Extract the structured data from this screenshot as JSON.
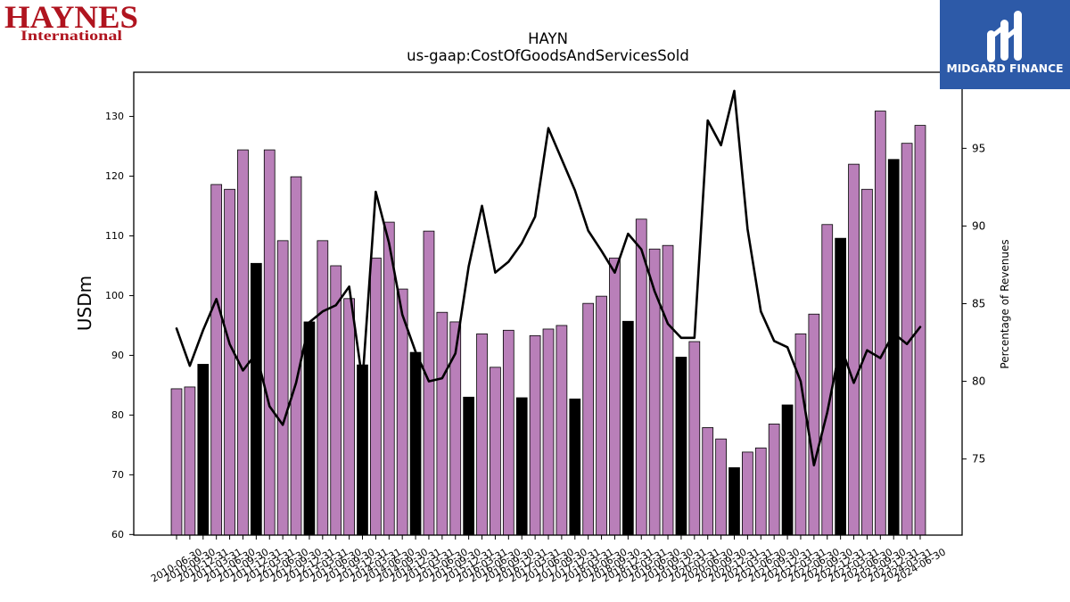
{
  "logos": {
    "company_name": "HAYNES",
    "company_subtitle": "International",
    "company_color": "#b0141f",
    "publisher_name": "MIDGARD FINANCE",
    "publisher_bg": "#2d5aa8",
    "publisher_fg": "#ffffff",
    "publisher_icon": "midgard-m-icon"
  },
  "chart_data": {
    "type": "bar",
    "title": "HAYN",
    "subtitle": "us-gaap:CostOfGoodsAndServicesSold",
    "xlabel": "",
    "ylabel": "USDm",
    "y2label": "Percentage of Revenues",
    "ylim": [
      59.9,
      137.4
    ],
    "y2lim": [
      70.1,
      99.9
    ],
    "yticks": [
      60,
      70,
      80,
      90,
      100,
      110,
      120,
      130
    ],
    "y2ticks": [
      75,
      80,
      85,
      90,
      95
    ],
    "grid": false,
    "legend": "none",
    "categories": [
      "2010-06-30",
      "2010-09-30",
      "2010-12-31",
      "2011-03-31",
      "2011-06-30",
      "2011-09-30",
      "2011-12-31",
      "2012-03-31",
      "2012-06-30",
      "2012-09-30",
      "2012-12-31",
      "2013-03-31",
      "2013-06-30",
      "2013-09-30",
      "2013-12-31",
      "2014-03-31",
      "2014-06-30",
      "2014-09-30",
      "2014-12-31",
      "2015-03-31",
      "2015-06-30",
      "2015-09-30",
      "2015-12-31",
      "2016-03-31",
      "2016-06-30",
      "2016-09-30",
      "2016-12-31",
      "2017-03-31",
      "2017-06-30",
      "2017-09-30",
      "2017-12-31",
      "2018-03-31",
      "2018-06-30",
      "2018-09-30",
      "2018-12-31",
      "2019-03-31",
      "2019-06-30",
      "2019-09-30",
      "2019-12-31",
      "2020-03-31",
      "2020-06-30",
      "2020-09-30",
      "2020-12-31",
      "2021-03-31",
      "2021-06-30",
      "2021-09-30",
      "2021-12-31",
      "2022-03-31",
      "2022-06-30",
      "2022-09-30",
      "2022-12-31",
      "2023-03-31",
      "2023-06-30",
      "2023-09-30",
      "2023-12-31",
      "2024-03-31",
      "2024-06-30"
    ],
    "series": [
      {
        "type": "bar",
        "axis": "left",
        "color": "#b97fb9",
        "highlight_color": "#000000",
        "values": [
          84.4,
          84.7,
          88.5,
          118.6,
          117.8,
          124.4,
          105.4,
          124.4,
          109.2,
          119.9,
          95.6,
          109.2,
          105.0,
          99.5,
          88.4,
          106.3,
          112.3,
          101.1,
          90.5,
          110.8,
          97.2,
          95.6,
          83.0,
          93.6,
          88.0,
          94.2,
          82.9,
          93.3,
          94.4,
          95.0,
          82.7,
          98.7,
          99.9,
          106.3,
          95.7,
          112.8,
          107.8,
          108.4,
          89.7,
          92.3,
          77.9,
          76.0,
          71.2,
          73.8,
          74.5,
          78.5,
          81.7,
          93.6,
          96.9,
          111.9,
          109.6,
          122.0,
          117.8,
          130.9,
          122.8,
          125.5,
          128.5
        ],
        "highlight": [
          false,
          false,
          true,
          false,
          false,
          false,
          true,
          false,
          false,
          false,
          true,
          false,
          false,
          false,
          true,
          false,
          false,
          false,
          true,
          false,
          false,
          false,
          true,
          false,
          false,
          false,
          true,
          false,
          false,
          false,
          true,
          false,
          false,
          false,
          true,
          false,
          false,
          false,
          true,
          false,
          false,
          false,
          true,
          false,
          false,
          false,
          true,
          false,
          false,
          false,
          true,
          false,
          false,
          false,
          true,
          false,
          false
        ]
      },
      {
        "type": "line",
        "axis": "right",
        "color": "#000000",
        "values": [
          83.4,
          81.0,
          83.3,
          85.3,
          82.4,
          80.7,
          81.8,
          78.4,
          77.2,
          79.9,
          83.8,
          84.5,
          84.9,
          86.1,
          80.0,
          92.2,
          88.9,
          84.3,
          81.9,
          80.0,
          80.2,
          81.8,
          87.4,
          91.3,
          87.0,
          87.7,
          88.9,
          90.6,
          96.3,
          94.3,
          92.3,
          89.7,
          88.4,
          87.0,
          89.5,
          88.5,
          85.8,
          83.7,
          82.8,
          82.8,
          96.8,
          95.2,
          98.7,
          89.8,
          84.5,
          82.6,
          82.2,
          80.0,
          74.6,
          78.0,
          82.3,
          79.9,
          82.0,
          81.5,
          83.1,
          82.4,
          83.5
        ]
      }
    ]
  }
}
